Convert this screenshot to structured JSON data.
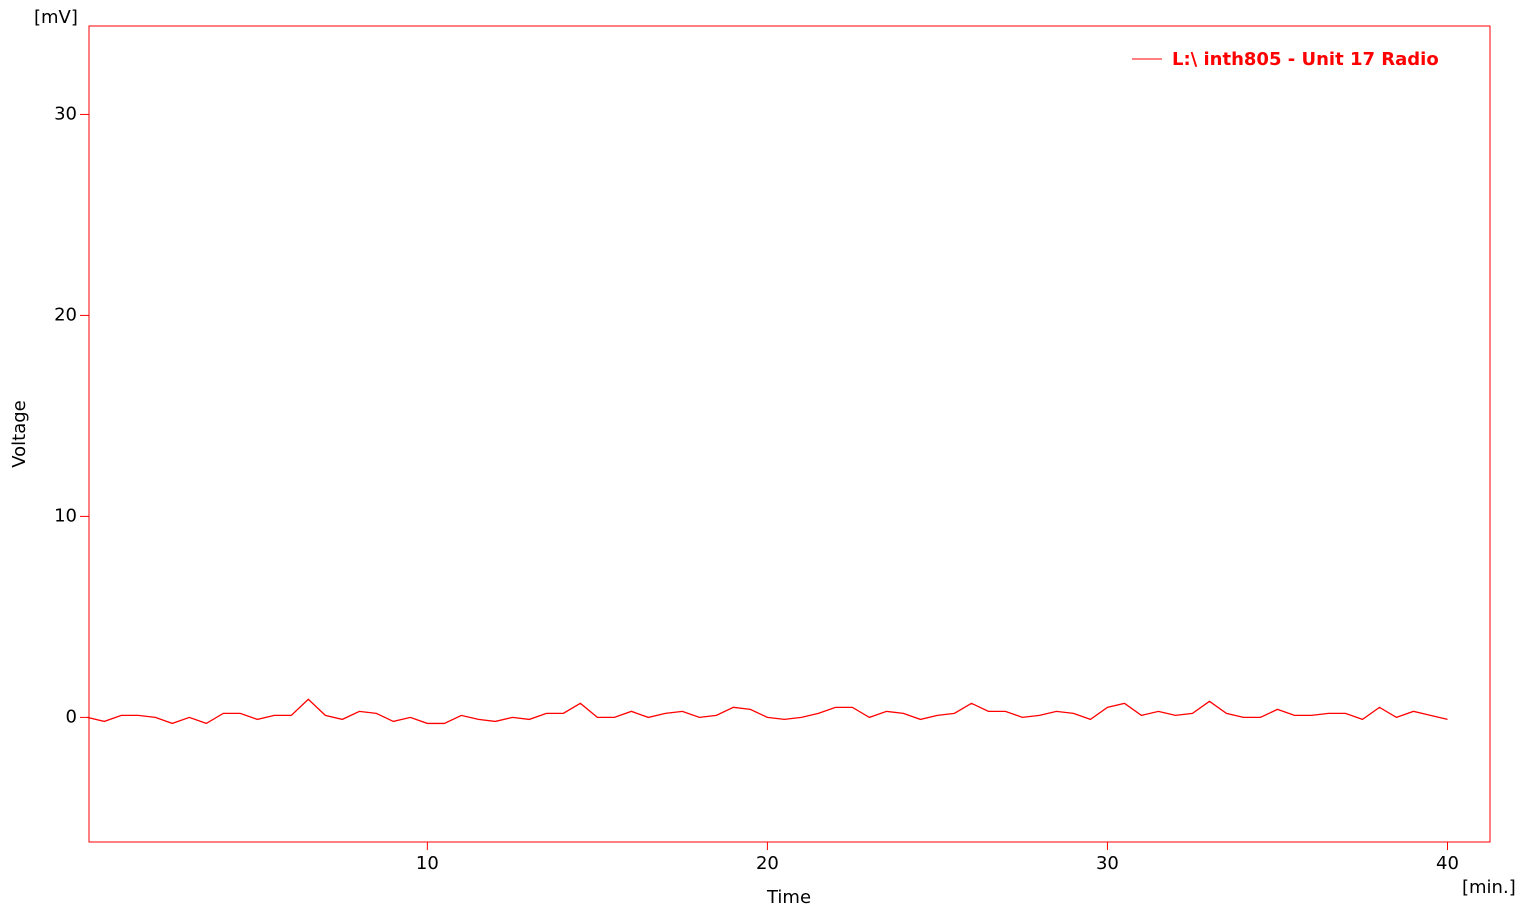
{
  "chart_data": {
    "type": "line",
    "y_unit": "[mV]",
    "x_unit": "[min.]",
    "y_label": "Voltage",
    "x_label": "Time",
    "x": [
      0,
      0.5,
      1,
      1.5,
      2,
      2.5,
      3,
      3.5,
      4,
      4.5,
      5,
      5.5,
      6,
      6.5,
      7,
      7.5,
      8,
      8.5,
      9,
      9.5,
      10,
      10.5,
      11,
      11.5,
      12,
      12.5,
      13,
      13.5,
      14,
      14.5,
      15,
      15.5,
      16,
      16.5,
      17,
      17.5,
      18,
      18.5,
      19,
      19.5,
      20,
      20.5,
      21,
      21.5,
      22,
      22.5,
      23,
      23.5,
      24,
      24.5,
      25,
      25.5,
      26,
      26.5,
      27,
      27.5,
      28,
      28.5,
      29,
      29.5,
      30,
      30.5,
      31,
      31.5,
      32,
      32.5,
      33,
      33.5,
      34,
      34.5,
      35,
      35.5,
      36,
      36.5,
      37,
      37.5,
      38,
      38.5,
      39,
      39.5,
      40
    ],
    "series": [
      {
        "name": "L:\\ inth805 - Unit 17 Radio",
        "color": "#ff0000",
        "values": [
          0.0,
          -0.2,
          0.1,
          0.1,
          0.0,
          -0.3,
          0.0,
          -0.3,
          0.2,
          0.2,
          -0.1,
          0.1,
          0.1,
          0.9,
          0.1,
          -0.1,
          0.3,
          0.2,
          -0.2,
          0.0,
          -0.3,
          -0.3,
          0.1,
          -0.1,
          -0.2,
          0.0,
          -0.1,
          0.2,
          0.2,
          0.7,
          0.0,
          0.0,
          0.3,
          0.0,
          0.2,
          0.3,
          0.0,
          0.1,
          0.5,
          0.4,
          0.0,
          -0.1,
          0.0,
          0.2,
          0.5,
          0.5,
          0.0,
          0.3,
          0.2,
          -0.1,
          0.1,
          0.2,
          0.7,
          0.3,
          0.3,
          0.0,
          0.1,
          0.3,
          0.2,
          -0.1,
          0.5,
          0.7,
          0.1,
          0.3,
          0.1,
          0.2,
          0.8,
          0.2,
          0.0,
          0.0,
          0.4,
          0.1,
          0.1,
          0.2,
          0.2,
          -0.1,
          0.5,
          0.0,
          0.3,
          0.1,
          -0.1
        ]
      }
    ],
    "xlim": [
      0.05,
      41.25
    ],
    "ylim": [
      -6.2,
      34.4
    ],
    "xticks": [
      10,
      20,
      30,
      40
    ],
    "yticks": [
      0,
      10,
      20,
      30
    ],
    "axis_color": "#ff0000",
    "legend": "upper right"
  }
}
